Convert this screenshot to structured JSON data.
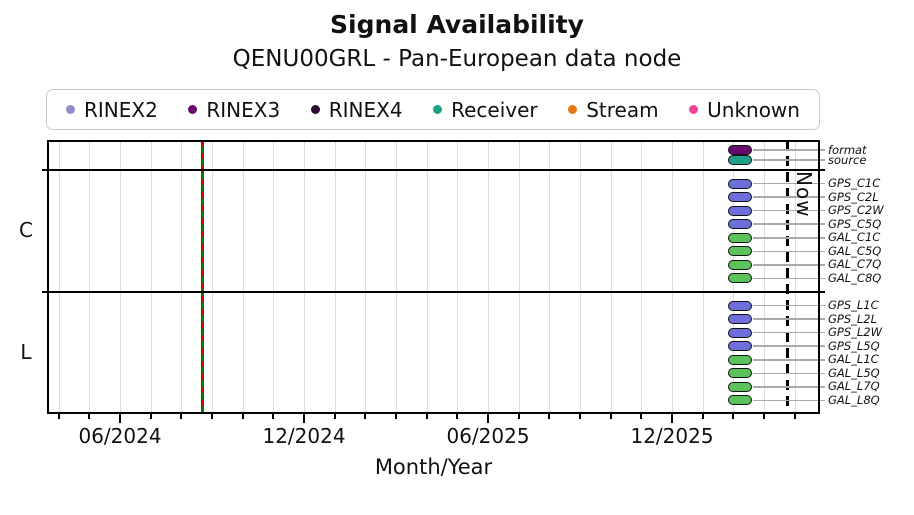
{
  "title": "Signal Availability",
  "subtitle": "QENU00GRL - Pan-European data node",
  "now_label": "Now",
  "x_axis": {
    "label": "Month/Year",
    "major_tick_labels": [
      "06/2024",
      "12/2024",
      "06/2025",
      "12/2025"
    ],
    "minor_tick_unit": "month"
  },
  "colors": {
    "rinex2": "#8f8fc8",
    "rinex3": "#670a6b",
    "rinex4": "#2d0a30",
    "receiver": "#1fa187",
    "stream": "#e8770f",
    "unknown": "#f0439c",
    "gps": "#6e6edd",
    "gal": "#5cc35c",
    "event_red": "#d40000",
    "event_green": "#007a00",
    "now_line": "#000000"
  },
  "legend": [
    {
      "key": "rinex2",
      "label": "RINEX2"
    },
    {
      "key": "rinex3",
      "label": "RINEX3"
    },
    {
      "key": "rinex4",
      "label": "RINEX4"
    },
    {
      "key": "receiver",
      "label": "Receiver"
    },
    {
      "key": "stream",
      "label": "Stream"
    },
    {
      "key": "unknown",
      "label": "Unknown"
    }
  ],
  "sections": [
    {
      "id": "header",
      "label": "",
      "rows": [
        {
          "name": "format",
          "color": "rinex3",
          "marker_x": "02/2026"
        },
        {
          "name": "source",
          "color": "receiver",
          "marker_x": "02/2026"
        }
      ]
    },
    {
      "id": "C",
      "label": "C",
      "rows": [
        {
          "name": "GPS_C1C",
          "color": "gps",
          "marker_x": "02/2026"
        },
        {
          "name": "GPS_C2L",
          "color": "gps",
          "marker_x": "02/2026"
        },
        {
          "name": "GPS_C2W",
          "color": "gps",
          "marker_x": "02/2026"
        },
        {
          "name": "GPS_C5Q",
          "color": "gps",
          "marker_x": "02/2026"
        },
        {
          "name": "GAL_C1C",
          "color": "gal",
          "marker_x": "02/2026"
        },
        {
          "name": "GAL_C5Q",
          "color": "gal",
          "marker_x": "02/2026"
        },
        {
          "name": "GAL_C7Q",
          "color": "gal",
          "marker_x": "02/2026"
        },
        {
          "name": "GAL_C8Q",
          "color": "gal",
          "marker_x": "02/2026"
        }
      ]
    },
    {
      "id": "L",
      "label": "L",
      "rows": [
        {
          "name": "GPS_L1C",
          "color": "gps",
          "marker_x": "02/2026"
        },
        {
          "name": "GPS_L2L",
          "color": "gps",
          "marker_x": "02/2026"
        },
        {
          "name": "GPS_L2W",
          "color": "gps",
          "marker_x": "02/2026"
        },
        {
          "name": "GPS_L5Q",
          "color": "gps",
          "marker_x": "02/2026"
        },
        {
          "name": "GAL_L1C",
          "color": "gal",
          "marker_x": "02/2026"
        },
        {
          "name": "GAL_L5Q",
          "color": "gal",
          "marker_x": "02/2026"
        },
        {
          "name": "GAL_L7Q",
          "color": "gal",
          "marker_x": "02/2026"
        },
        {
          "name": "GAL_L8Q",
          "color": "gal",
          "marker_x": "02/2026"
        }
      ]
    }
  ],
  "vertical_lines": [
    {
      "name": "event-line",
      "approx_date": "09/2024",
      "style": "green-solid-red-dashed"
    },
    {
      "name": "now-line",
      "approx_date": "03/2026",
      "style": "black-dashed",
      "label": "Now"
    }
  ],
  "chart_data": {
    "type": "scatter",
    "title": "Signal Availability",
    "subtitle": "QENU00GRL - Pan-European data node",
    "xlabel": "Month/Year",
    "x_tick_labels": [
      "06/2024",
      "12/2024",
      "06/2025",
      "12/2025"
    ],
    "x_range": [
      "04/2024",
      "04/2026"
    ],
    "grid": "monthly vertical gridlines",
    "legend_position": "top",
    "rows": [
      "format",
      "source",
      "GPS_C1C",
      "GPS_C2L",
      "GPS_C2W",
      "GPS_C5Q",
      "GAL_C1C",
      "GAL_C5Q",
      "GAL_C7Q",
      "GAL_C8Q",
      "GPS_L1C",
      "GPS_L2L",
      "GPS_L2W",
      "GPS_L5Q",
      "GAL_L1C",
      "GAL_L5Q",
      "GAL_L7Q",
      "GAL_L8Q"
    ],
    "row_groups": [
      "",
      "",
      "C",
      "C",
      "C",
      "C",
      "C",
      "C",
      "C",
      "C",
      "L",
      "L",
      "L",
      "L",
      "L",
      "L",
      "L",
      "L"
    ],
    "points": [
      {
        "row": "format",
        "x": "02/2026",
        "category": "RINEX3"
      },
      {
        "row": "source",
        "x": "02/2026",
        "category": "Receiver"
      },
      {
        "row": "GPS_C1C",
        "x": "02/2026",
        "category": "GPS"
      },
      {
        "row": "GPS_C2L",
        "x": "02/2026",
        "category": "GPS"
      },
      {
        "row": "GPS_C2W",
        "x": "02/2026",
        "category": "GPS"
      },
      {
        "row": "GPS_C5Q",
        "x": "02/2026",
        "category": "GPS"
      },
      {
        "row": "GAL_C1C",
        "x": "02/2026",
        "category": "GAL"
      },
      {
        "row": "GAL_C5Q",
        "x": "02/2026",
        "category": "GAL"
      },
      {
        "row": "GAL_C7Q",
        "x": "02/2026",
        "category": "GAL"
      },
      {
        "row": "GAL_C8Q",
        "x": "02/2026",
        "category": "GAL"
      },
      {
        "row": "GPS_L1C",
        "x": "02/2026",
        "category": "GPS"
      },
      {
        "row": "GPS_L2L",
        "x": "02/2026",
        "category": "GPS"
      },
      {
        "row": "GPS_L2W",
        "x": "02/2026",
        "category": "GPS"
      },
      {
        "row": "GPS_L5Q",
        "x": "02/2026",
        "category": "GPS"
      },
      {
        "row": "GAL_L1C",
        "x": "02/2026",
        "category": "GAL"
      },
      {
        "row": "GAL_L5Q",
        "x": "02/2026",
        "category": "GAL"
      },
      {
        "row": "GAL_L7Q",
        "x": "02/2026",
        "category": "GAL"
      },
      {
        "row": "GAL_L8Q",
        "x": "02/2026",
        "category": "GAL"
      }
    ],
    "annotations": {
      "event_line_x": "09/2024",
      "now_line_x": "03/2026",
      "now_text": "Now"
    }
  }
}
